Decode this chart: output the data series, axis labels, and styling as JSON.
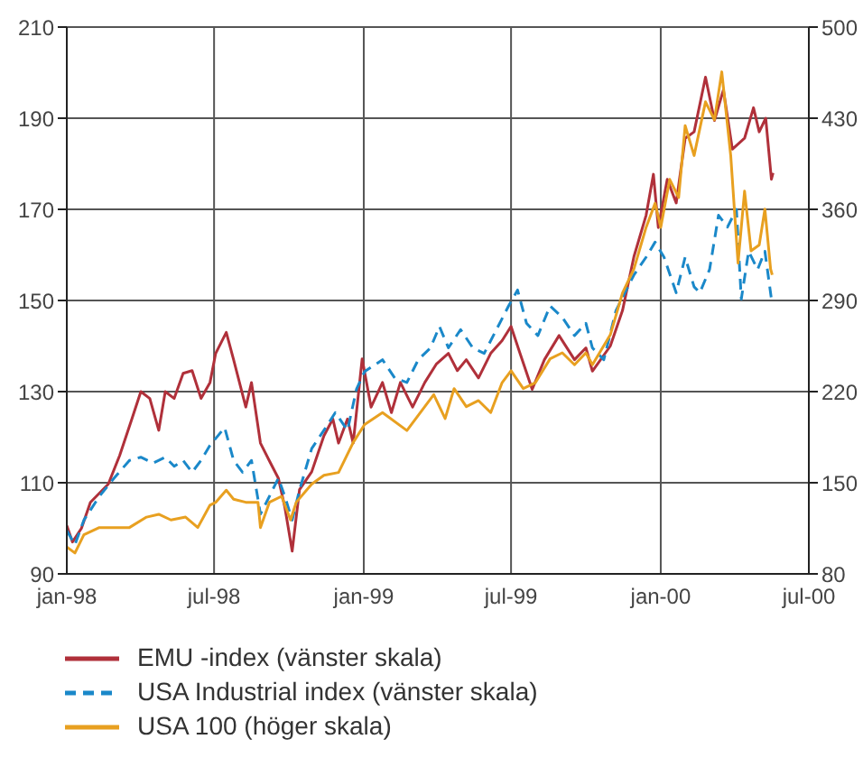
{
  "chart_data": {
    "type": "line",
    "xlim": [
      "1998-01-01",
      "2000-07-01"
    ],
    "xticks": [
      {
        "value": "1998-01-01",
        "label": "jan-98"
      },
      {
        "value": "1998-07-01",
        "label": "jul-98"
      },
      {
        "value": "1999-01-01",
        "label": "jan-99"
      },
      {
        "value": "1999-07-01",
        "label": "jul-99"
      },
      {
        "value": "2000-01-01",
        "label": "jan-00"
      },
      {
        "value": "2000-07-01",
        "label": "jul-00"
      }
    ],
    "ylim": [
      90,
      210
    ],
    "yticks": [
      90,
      110,
      130,
      150,
      170,
      190,
      210
    ],
    "y2lim": [
      80,
      500
    ],
    "y2ticks": [
      80,
      150,
      220,
      290,
      360,
      430,
      500
    ],
    "grid": true,
    "legend": "bottom",
    "marker": "none",
    "series": [
      {
        "name": "EMU -index (vänster skala)",
        "color": "#b0303a",
        "line_style": "solid",
        "x": [
          "1998-01-01",
          "1998-01-08",
          "1998-01-19",
          "1998-01-30",
          "1998-02-21",
          "1998-03-07",
          "1998-03-22",
          "1998-04-02",
          "1998-04-13",
          "1998-04-24",
          "1998-05-02",
          "1998-05-13",
          "1998-05-24",
          "1998-06-04",
          "1998-06-15",
          "1998-06-26",
          "1998-07-03",
          "1998-07-16",
          "1998-07-25",
          "1998-08-09",
          "1998-08-16",
          "1998-08-27",
          "1998-09-07",
          "1998-09-18",
          "1998-09-26",
          "1998-10-05",
          "1998-10-14",
          "1998-10-29",
          "1998-11-13",
          "1998-11-24",
          "1998-12-01",
          "1998-12-12",
          "1998-12-19",
          "1998-12-30",
          "1999-01-10",
          "1999-01-24",
          "1999-02-04",
          "1999-02-15",
          "1999-03-02",
          "1999-03-17",
          "1999-03-31",
          "1999-04-15",
          "1999-04-26",
          "1999-05-07",
          "1999-05-22",
          "1999-06-06",
          "1999-06-20",
          "1999-07-01",
          "1999-07-12",
          "1999-07-27",
          "1999-08-11",
          "1999-08-29",
          "1999-09-17",
          "1999-10-01",
          "1999-10-09",
          "1999-10-31",
          "1999-11-15",
          "1999-11-29",
          "1999-12-14",
          "1999-12-23",
          "1999-12-29",
          "2000-01-09",
          "2000-01-20",
          "2000-01-31",
          "2000-02-11",
          "2000-02-25",
          "2000-03-07",
          "2000-03-18",
          "2000-03-29",
          "2000-04-13",
          "2000-04-24",
          "2000-05-01",
          "2000-05-09",
          "2000-05-16",
          "2000-05-18"
        ],
        "values": [
          100.6,
          97,
          100,
          105.7,
          109.7,
          116,
          124,
          130,
          128.5,
          121.5,
          130,
          128.5,
          134,
          134.6,
          128.5,
          132,
          138.4,
          143,
          137,
          126.6,
          132,
          118.7,
          114.8,
          111,
          104.6,
          95,
          108.5,
          112.4,
          120.3,
          124,
          118.7,
          124,
          118.7,
          137.2,
          126.6,
          132,
          125.4,
          132,
          126.6,
          132,
          136,
          138.4,
          134.6,
          137,
          133,
          138.4,
          141.2,
          144.3,
          138.4,
          130.5,
          137,
          142.3,
          137,
          139.6,
          134.5,
          140,
          147.8,
          159.6,
          168.7,
          177.7,
          166,
          176.6,
          171.4,
          185.6,
          187,
          199,
          189.5,
          196.2,
          183.2,
          185.6,
          192.3,
          187,
          190,
          176.6,
          178
        ]
      },
      {
        "name": "USA Industrial index (vänster skala)",
        "color": "#1a88c9",
        "line_style": "dashed",
        "x": [
          "1998-01-01",
          "1998-01-11",
          "1998-01-22",
          "1998-02-10",
          "1998-02-28",
          "1998-03-19",
          "1998-04-02",
          "1998-04-17",
          "1998-05-02",
          "1998-05-13",
          "1998-05-24",
          "1998-06-04",
          "1998-06-15",
          "1998-06-26",
          "1998-07-14",
          "1998-07-25",
          "1998-08-05",
          "1998-08-16",
          "1998-08-27",
          "1998-09-07",
          "1998-09-18",
          "1998-09-26",
          "1998-10-05",
          "1998-10-14",
          "1998-10-29",
          "1998-11-13",
          "1998-11-27",
          "1998-12-12",
          "1998-12-23",
          "1999-01-02",
          "1999-01-24",
          "1999-02-08",
          "1999-02-23",
          "1999-03-09",
          "1999-03-24",
          "1999-04-04",
          "1999-04-15",
          "1999-04-30",
          "1999-05-15",
          "1999-05-29",
          "1999-06-13",
          "1999-06-28",
          "1999-07-09",
          "1999-07-20",
          "1999-08-03",
          "1999-08-18",
          "1999-09-02",
          "1999-09-17",
          "1999-10-01",
          "1999-10-09",
          "1999-10-23",
          "1999-11-07",
          "1999-11-29",
          "1999-12-14",
          "1999-12-25",
          "2000-01-05",
          "2000-01-20",
          "2000-01-31",
          "2000-02-11",
          "2000-02-18",
          "2000-03-01",
          "2000-03-12",
          "2000-03-23",
          "2000-04-03",
          "2000-04-09",
          "2000-04-18",
          "2000-04-29",
          "2000-05-08",
          "2000-05-16"
        ],
        "values": [
          99.5,
          96.4,
          101.8,
          107,
          111,
          114.9,
          115.6,
          114.3,
          115.6,
          113.6,
          114.9,
          112.3,
          114.9,
          118.2,
          122.1,
          114.9,
          112.3,
          114.9,
          103.1,
          107,
          111,
          107,
          101.8,
          108.4,
          117.5,
          121.5,
          125.4,
          121.5,
          130.5,
          134.4,
          137,
          133,
          132,
          137,
          139.6,
          144.3,
          139.6,
          143.6,
          139.6,
          138.4,
          143.6,
          148.8,
          152.3,
          145,
          142.3,
          148.8,
          146.3,
          142.3,
          145,
          139.6,
          137,
          147.8,
          155.6,
          159.5,
          162.8,
          159.5,
          151.7,
          159.5,
          153,
          151.7,
          156.8,
          168.7,
          166.1,
          170,
          150.3,
          160.8,
          156.8,
          160.8,
          150.3
        ]
      },
      {
        "name": "USA 100 (höger skala)",
        "color": "#e8a020",
        "line_style": "solid",
        "axis": "y2",
        "x": [
          "1998-01-01",
          "1998-01-11",
          "1998-01-22",
          "1998-02-10",
          "1998-02-28",
          "1998-03-19",
          "1998-04-09",
          "1998-04-24",
          "1998-05-09",
          "1998-05-27",
          "1998-06-11",
          "1998-06-26",
          "1998-07-03",
          "1998-07-16",
          "1998-07-25",
          "1998-08-09",
          "1998-08-24",
          "1998-08-27",
          "1998-09-07",
          "1998-09-22",
          "1998-10-03",
          "1998-10-10",
          "1998-10-29",
          "1998-11-13",
          "1998-12-01",
          "1998-12-19",
          "1999-01-02",
          "1999-01-24",
          "1999-02-23",
          "1999-03-17",
          "1999-03-28",
          "1999-04-11",
          "1999-04-22",
          "1999-05-07",
          "1999-05-22",
          "1999-06-06",
          "1999-06-20",
          "1999-07-01",
          "1999-07-16",
          "1999-07-31",
          "1999-08-18",
          "1999-09-02",
          "1999-09-17",
          "1999-10-01",
          "1999-10-09",
          "1999-10-31",
          "1999-11-15",
          "1999-11-29",
          "1999-12-14",
          "1999-12-25",
          "2000-01-01",
          "2000-01-12",
          "2000-01-23",
          "2000-01-31",
          "2000-02-11",
          "2000-02-25",
          "2000-03-07",
          "2000-03-16",
          "2000-03-27",
          "2000-04-05",
          "2000-04-13",
          "2000-04-21",
          "2000-05-01",
          "2000-05-08",
          "2000-05-15",
          "2000-05-17"
        ],
        "values": [
          100.7,
          96,
          110,
          115.6,
          115.6,
          115.6,
          123.6,
          125.8,
          121.4,
          123.6,
          115.6,
          132.8,
          135,
          144.3,
          137.4,
          135,
          135,
          115.6,
          135,
          139.6,
          121.4,
          135,
          148.9,
          155.7,
          157.9,
          180.9,
          194.7,
          203.9,
          190.1,
          208.5,
          217.7,
          199.3,
          222.3,
          208.5,
          213.1,
          203.9,
          226.9,
          236,
          222.3,
          226.9,
          245.2,
          249.8,
          240.6,
          249.8,
          240.6,
          263.6,
          295.8,
          314.2,
          346.2,
          364.6,
          346.2,
          383,
          369.1,
          424.3,
          401.3,
          442.6,
          428.8,
          465.6,
          401.3,
          318.7,
          374,
          328.1,
          332.6,
          360.2,
          314.2,
          309.7
        ]
      }
    ]
  }
}
